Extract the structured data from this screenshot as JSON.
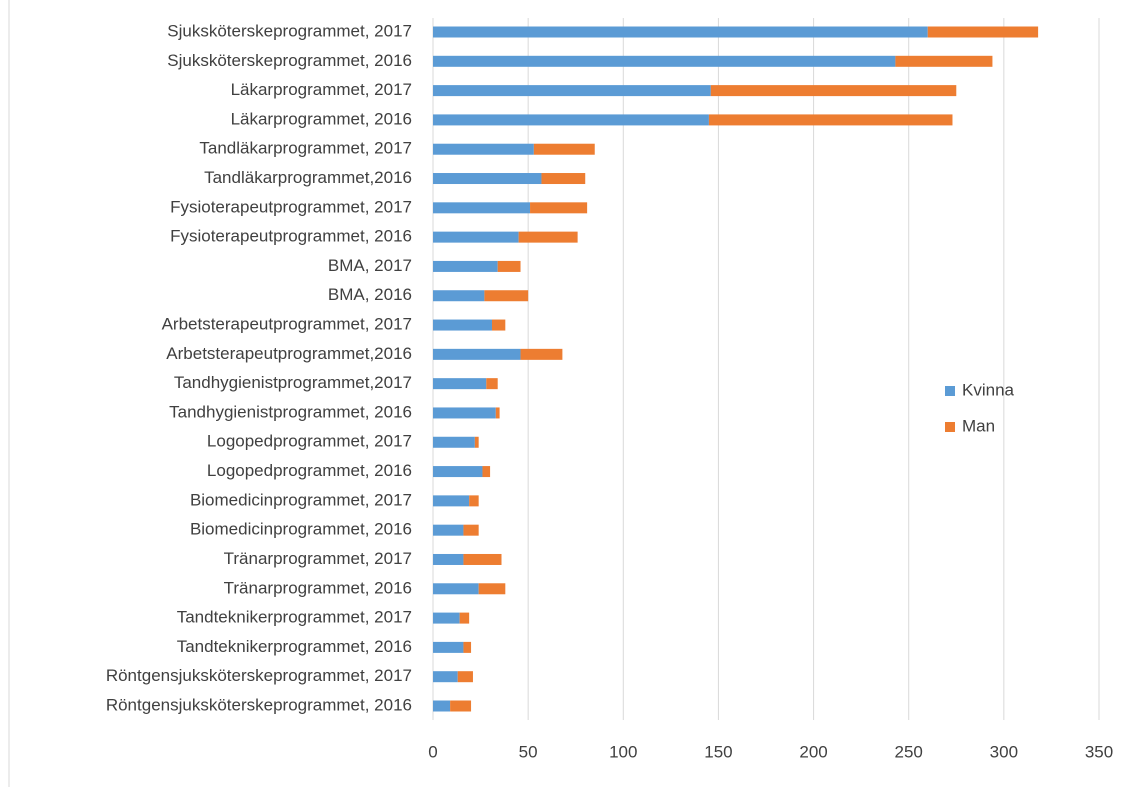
{
  "chart_data": {
    "type": "stacked-barh",
    "categories": [
      "Sjuksköterskeprogrammet, 2017",
      "Sjuksköterskeprogrammet, 2016",
      "Läkarprogrammet, 2017",
      "Läkarprogrammet, 2016",
      "Tandläkarprogrammet, 2017",
      "Tandläkarprogrammet,2016",
      "Fysioterapeutprogrammet, 2017",
      "Fysioterapeutprogrammet, 2016",
      "BMA, 2017",
      "BMA, 2016",
      "Arbetsterapeutprogrammet, 2017",
      "Arbetsterapeutprogrammet,2016",
      "Tandhygienistprogrammet,2017",
      "Tandhygienistprogrammet, 2016",
      "Logopedprogrammet, 2017",
      "Logopedprogrammet, 2016",
      "Biomedicinprogrammet, 2017",
      "Biomedicinprogrammet, 2016",
      "Tränarprogrammet, 2017",
      "Tränarprogrammet, 2016",
      "Tandteknikerprogrammet, 2017",
      "Tandteknikerprogrammet, 2016",
      "Röntgensjuksköterskeprogrammet, 2017",
      "Röntgensjuksköterskeprogrammet, 2016"
    ],
    "series": [
      {
        "name": "Kvinna",
        "color": "#5b9bd5",
        "values": [
          260,
          243,
          146,
          145,
          53,
          57,
          51,
          45,
          34,
          27,
          31,
          46,
          28,
          33,
          22,
          26,
          19,
          16,
          16,
          24,
          14,
          16,
          13,
          9
        ]
      },
      {
        "name": "Man",
        "color": "#ed7d31",
        "values": [
          58,
          51,
          129,
          128,
          32,
          23,
          30,
          31,
          12,
          23,
          7,
          22,
          6,
          2,
          2,
          4,
          5,
          8,
          20,
          14,
          5,
          4,
          8,
          11
        ]
      }
    ],
    "xlim": [
      0,
      350
    ],
    "xticks": [
      0,
      50,
      100,
      150,
      200,
      250,
      300,
      350
    ],
    "grid": true,
    "legend": "right"
  }
}
